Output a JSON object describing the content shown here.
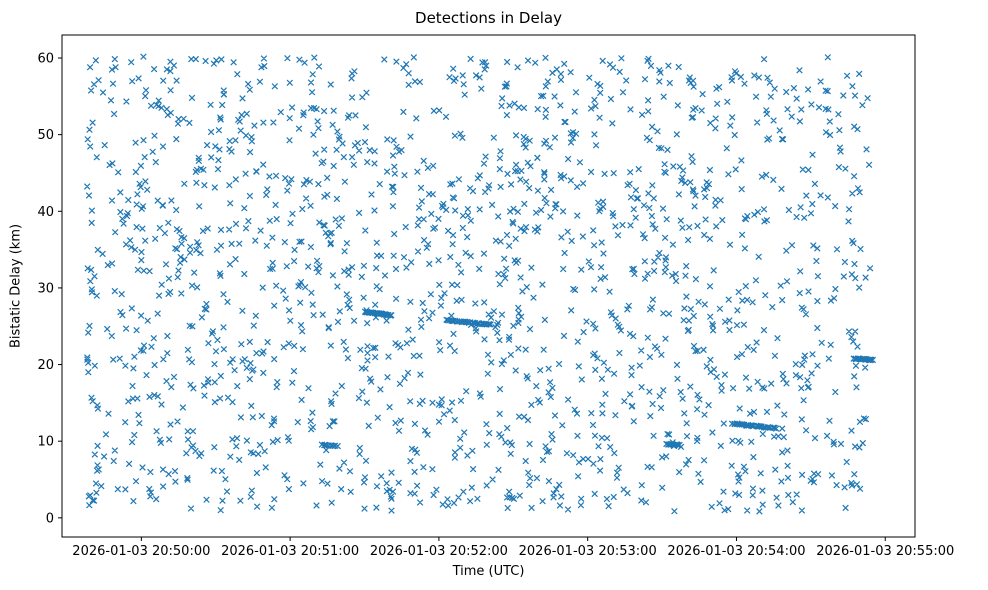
{
  "chart_data": {
    "type": "scatter",
    "title": "Detections in Delay",
    "xlabel": "Time (UTC)",
    "ylabel": "Bistatic Delay (km)",
    "marker": "x",
    "marker_color": "#1f77b4",
    "background_color": "#ffffff",
    "grid": false,
    "legend": null,
    "x_tick_labels": [
      "2026-01-03 20:50:00",
      "2026-01-03 20:51:00",
      "2026-01-03 20:52:00",
      "2026-01-03 20:53:00",
      "2026-01-03 20:54:00",
      "2026-01-03 20:55:00"
    ],
    "x_tick_seconds": [
      0,
      60,
      120,
      180,
      240,
      300
    ],
    "x_range_seconds": [
      -32,
      312
    ],
    "y_ticks": [
      0,
      10,
      20,
      30,
      40,
      50,
      60
    ],
    "y_range": [
      -2.5,
      63
    ],
    "noise": {
      "description": "uniform random detections filling the plot",
      "count": 1700,
      "seed": 7,
      "t_min": -22,
      "t_max": 294,
      "y_min": 0.8,
      "y_max": 60.2
    },
    "tracks": [
      {
        "name": "track-1",
        "t_start": 90,
        "t_end": 101,
        "y_start": 26.9,
        "y_end": 26.4,
        "count": 28
      },
      {
        "name": "track-2",
        "t_start": 123,
        "t_end": 141,
        "y_start": 25.8,
        "y_end": 25.2,
        "count": 32
      },
      {
        "name": "track-3",
        "t_start": 238,
        "t_end": 256,
        "y_start": 12.3,
        "y_end": 11.7,
        "count": 36
      },
      {
        "name": "track-4",
        "t_start": 287,
        "t_end": 295,
        "y_start": 20.8,
        "y_end": 20.6,
        "count": 22
      },
      {
        "name": "track-5",
        "t_start": 212,
        "t_end": 217,
        "y_start": 9.6,
        "y_end": 9.5,
        "count": 12
      },
      {
        "name": "track-6",
        "t_start": 73,
        "t_end": 79,
        "y_start": 9.5,
        "y_end": 9.4,
        "count": 10
      }
    ]
  }
}
